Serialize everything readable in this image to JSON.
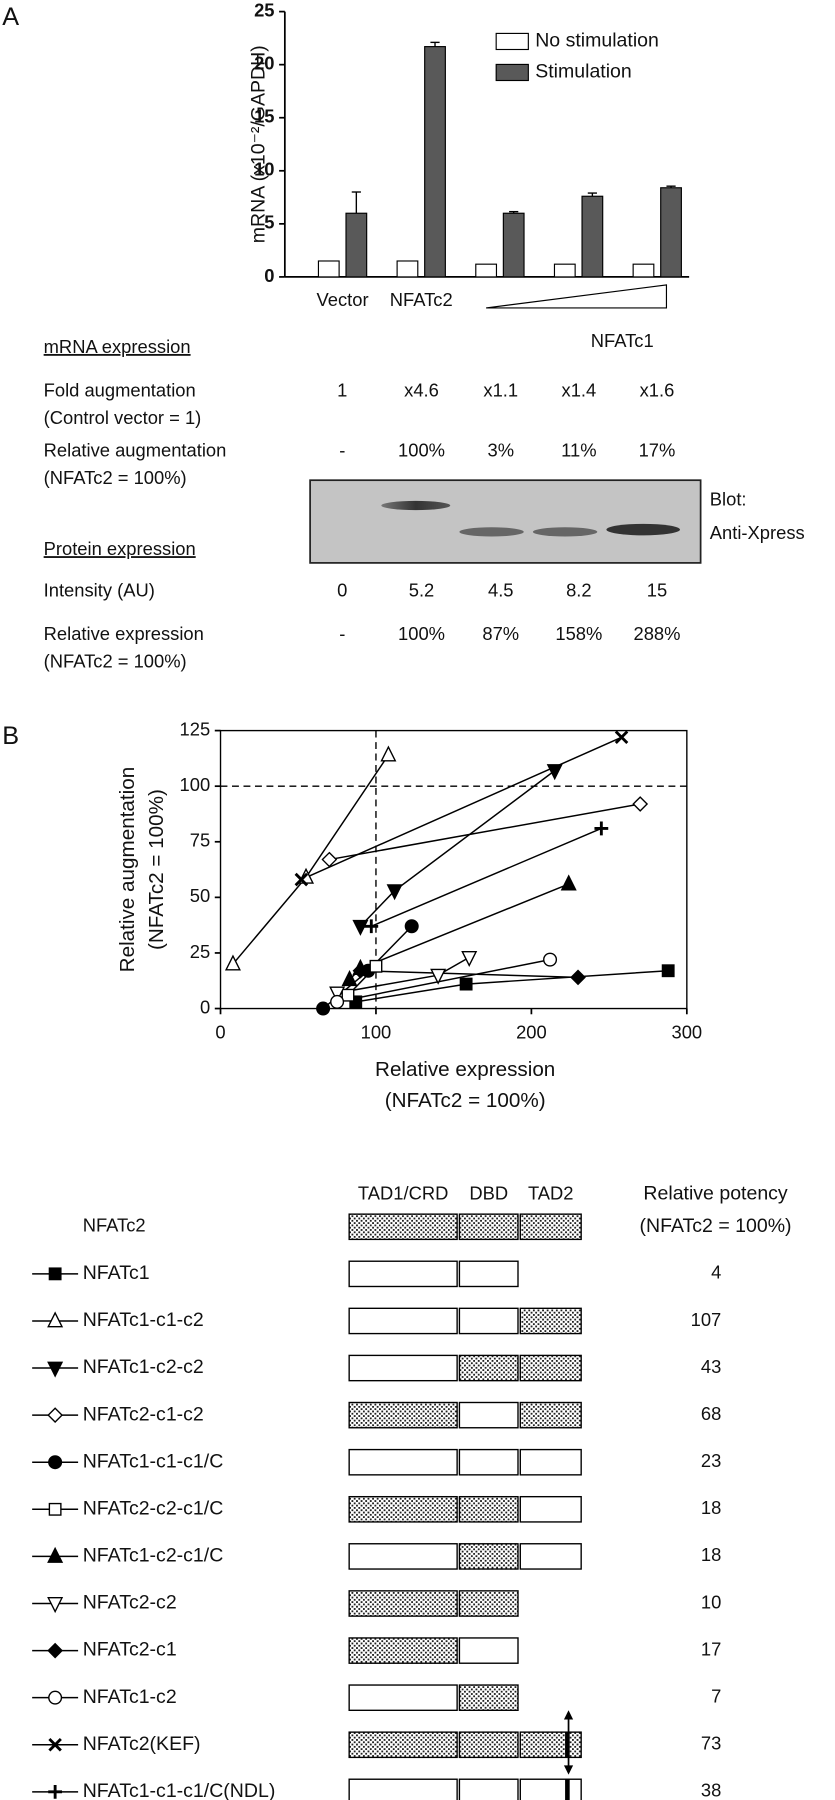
{
  "panel_labels": [
    "A",
    "B"
  ],
  "chart_data": [
    {
      "type": "bar",
      "ylabel": "mRNA (x10⁻²/GAPDH)",
      "categories": [
        "Vector",
        "NFATc2",
        null,
        null,
        null
      ],
      "group_label": "NFATc1",
      "series": [
        {
          "name": "No stimulation",
          "color": "#ffffff",
          "values": [
            1.5,
            1.5,
            1.2,
            1.2,
            1.2
          ]
        },
        {
          "name": "Stimulation",
          "color": "#595959",
          "values": [
            6,
            21.7,
            6,
            7.6,
            8.4
          ],
          "errors": [
            2,
            0.4,
            0.15,
            0.3,
            0.15
          ]
        }
      ],
      "ylim": [
        0,
        25
      ],
      "yticks": [
        0,
        5,
        10,
        15,
        20,
        25
      ]
    },
    {
      "type": "scatter",
      "xlabel": [
        "Relative expression",
        "(NFATc2 = 100%)"
      ],
      "ylabel": [
        "Relative augmentation",
        "(NFATc2 = 100%)"
      ],
      "xlim": [
        0,
        300
      ],
      "xticks": [
        0,
        100,
        200,
        300
      ],
      "ylim": [
        0,
        125
      ],
      "yticks": [
        0,
        25,
        50,
        75,
        100,
        125
      ],
      "hlines": [
        100
      ],
      "vlines": [
        100
      ],
      "color": "#000000",
      "series": [
        {
          "name": "NFATc1",
          "marker": "square-filled",
          "x": [
            87,
            158,
            288
          ],
          "values": [
            3,
            11,
            17
          ]
        },
        {
          "name": "NFATc1-c1-c2",
          "marker": "triangle-open",
          "x": [
            8,
            55,
            108
          ],
          "values": [
            20,
            59,
            114
          ]
        },
        {
          "name": "NFATc1-c2-c2",
          "marker": "triangle-down-filled",
          "x": [
            90,
            112,
            215
          ],
          "values": [
            37,
            53,
            107
          ]
        },
        {
          "name": "NFATc2-c1-c2",
          "marker": "diamond-open",
          "x": [
            70,
            270
          ],
          "values": [
            67,
            92
          ]
        },
        {
          "name": "NFATc1-c1-c1/C",
          "marker": "circle-filled",
          "x": [
            66,
            95,
            123
          ],
          "values": [
            0,
            17,
            37
          ]
        },
        {
          "name": "NFATc2-c2-c1/C",
          "marker": "square-open",
          "x": [
            82,
            100
          ],
          "values": [
            6,
            19
          ]
        },
        {
          "name": "NFATc1-c2-c1/C",
          "marker": "triangle-filled",
          "x": [
            83,
            90,
            224
          ],
          "values": [
            13,
            18,
            56
          ]
        },
        {
          "name": "NFATc2-c2",
          "marker": "triangle-down-open",
          "x": [
            75,
            140,
            160
          ],
          "values": [
            7,
            15,
            23
          ]
        },
        {
          "name": "NFATc2-c1",
          "marker": "diamond-filled",
          "x": [
            90,
            230
          ],
          "values": [
            17,
            14
          ]
        },
        {
          "name": "NFATc1-c2",
          "marker": "circle-open",
          "x": [
            75,
            212
          ],
          "values": [
            3,
            22
          ]
        },
        {
          "name": "NFATc2(KEF)",
          "marker": "x",
          "x": [
            52,
            258
          ],
          "values": [
            58,
            122
          ]
        },
        {
          "name": "NFATc1-c1-c1/C(NDL)",
          "marker": "plus",
          "x": [
            97,
            245
          ],
          "values": [
            37,
            81
          ]
        }
      ]
    }
  ],
  "table_a": {
    "mrna_heading": "mRNA expression",
    "protein_heading": "Protein expression",
    "rows": [
      {
        "label": "Fold augmentation",
        "sublabel": "(Control vector = 1)",
        "values": [
          "1",
          "x4.6",
          "x1.1",
          "x1.4",
          "x1.6"
        ]
      },
      {
        "label": "Relative augmentation",
        "sublabel": "(NFATc2 = 100%)",
        "values": [
          "-",
          "100%",
          "3%",
          "11%",
          "17%"
        ]
      },
      {
        "label": "Intensity (AU)",
        "values": [
          "0",
          "5.2",
          "4.5",
          "8.2",
          "15"
        ]
      },
      {
        "label": "Relative expression",
        "sublabel": "(NFATc2 = 100%)",
        "values": [
          "-",
          "100%",
          "87%",
          "158%",
          "288%"
        ]
      }
    ],
    "blot_label": [
      "Blot:",
      "Anti-Xpress"
    ]
  },
  "constructs": {
    "domain_headers": [
      "TAD1/CRD",
      "DBD",
      "TAD2"
    ],
    "potency_header": [
      "Relative potency",
      "(NFATc2 = 100%)"
    ],
    "reference": {
      "name": "NFATc2",
      "domains": [
        "c2",
        "c2",
        "c2"
      ]
    },
    "rows": [
      {
        "domains": [
          "c1",
          "c1",
          null
        ],
        "potency": 4
      },
      {
        "domains": [
          "c1",
          "c1",
          "c2"
        ],
        "potency": 107
      },
      {
        "domains": [
          "c1",
          "c2",
          "c2"
        ],
        "potency": 43
      },
      {
        "domains": [
          "c2",
          "c1",
          "c2"
        ],
        "potency": 68
      },
      {
        "domains": [
          "c1",
          "c1",
          "c1"
        ],
        "potency": 23
      },
      {
        "domains": [
          "c2",
          "c2",
          "c1"
        ],
        "potency": 18
      },
      {
        "domains": [
          "c1",
          "c2",
          "c1"
        ],
        "potency": 18
      },
      {
        "domains": [
          "c2",
          "c2",
          null
        ],
        "potency": 10
      },
      {
        "domains": [
          "c2",
          "c1",
          null
        ],
        "potency": 17
      },
      {
        "domains": [
          "c1",
          "c2",
          null
        ],
        "potency": 7
      },
      {
        "domains": [
          "c2",
          "c2",
          "c2"
        ],
        "potency": 73,
        "mutation": true
      },
      {
        "domains": [
          "c1",
          "c1",
          "c1"
        ],
        "potency": 38,
        "mutation": true
      }
    ]
  }
}
